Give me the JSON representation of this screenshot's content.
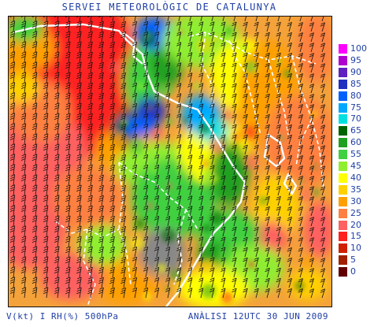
{
  "header": {
    "title": "SERVEI METEOROLÒGIC DE CATALUNYA"
  },
  "footer": {
    "left": "V(kt) I RH(%) 500hPa",
    "right": "ANÀLISI 12UTC 30 JUN 2009"
  },
  "legend": {
    "levels": [
      {
        "label": "100",
        "color": "#ff00ff"
      },
      {
        "label": "95",
        "color": "#b000d0"
      },
      {
        "label": "90",
        "color": "#6020c0"
      },
      {
        "label": "85",
        "color": "#2030c0"
      },
      {
        "label": "80",
        "color": "#0060ff"
      },
      {
        "label": "75",
        "color": "#00a8ff"
      },
      {
        "label": "70",
        "color": "#00e0e0"
      },
      {
        "label": "65",
        "color": "#006400"
      },
      {
        "label": "60",
        "color": "#20a020"
      },
      {
        "label": "55",
        "color": "#40d040"
      },
      {
        "label": "45",
        "color": "#90ee30"
      },
      {
        "label": "40",
        "color": "#ffff00"
      },
      {
        "label": "35",
        "color": "#ffd000"
      },
      {
        "label": "30",
        "color": "#ffa000"
      },
      {
        "label": "25",
        "color": "#ff8040"
      },
      {
        "label": "20",
        "color": "#ff6060"
      },
      {
        "label": "15",
        "color": "#ff2020"
      },
      {
        "label": "10",
        "color": "#d02000"
      },
      {
        "label": "5",
        "color": "#a02000"
      },
      {
        "label": "0",
        "color": "#600000"
      }
    ]
  }
}
